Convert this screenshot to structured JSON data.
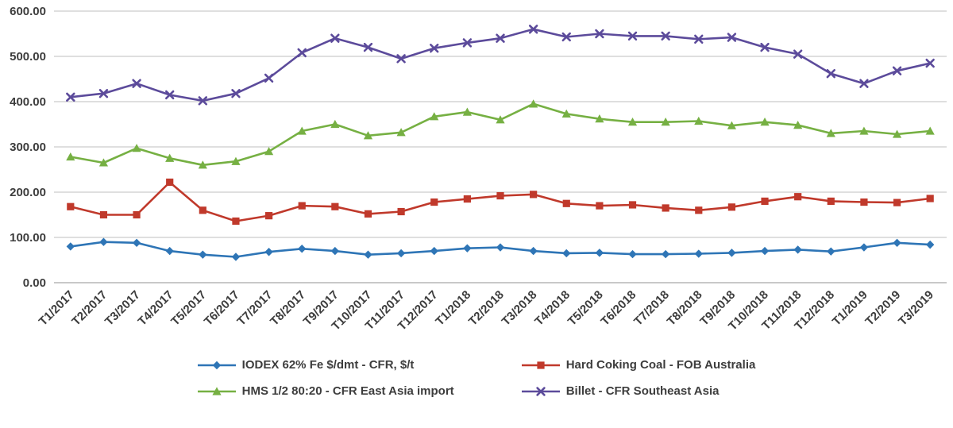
{
  "chart_data": {
    "type": "line",
    "title": "",
    "xlabel": "",
    "ylabel": "",
    "ylim": [
      0,
      600
    ],
    "grid": true,
    "legend_position": "bottom",
    "ytick_labels": [
      "0.00",
      "100.00",
      "200.00",
      "300.00",
      "400.00",
      "500.00",
      "600.00"
    ],
    "x": [
      "T1/2017",
      "T2/2017",
      "T3/2017",
      "T4/2017",
      "T5/2017",
      "T6/2017",
      "T7/2017",
      "T8/2017",
      "T9/2017",
      "T10/2017",
      "T11/2017",
      "T12/2017",
      "T1/2018",
      "T2/2018",
      "T3/2018",
      "T4/2018",
      "T5/2018",
      "T6/2018",
      "T7/2018",
      "T8/2018",
      "T9/2018",
      "T10/2018",
      "T11/2018",
      "T12/2018",
      "T1/2019",
      "T2/2019",
      "T3/2019"
    ],
    "series": [
      {
        "name": "IODEX 62% Fe $/dmt - CFR, $/t",
        "color": "#2e75b6",
        "marker": "diamond",
        "values": [
          80,
          90,
          88,
          70,
          62,
          57,
          68,
          75,
          70,
          62,
          65,
          70,
          76,
          78,
          70,
          65,
          66,
          63,
          63,
          64,
          66,
          70,
          73,
          69,
          78,
          88,
          84
        ]
      },
      {
        "name": "Hard Coking Coal - FOB Australia",
        "color": "#c0392b",
        "marker": "square",
        "values": [
          168,
          150,
          150,
          222,
          160,
          136,
          148,
          170,
          168,
          152,
          157,
          178,
          185,
          192,
          195,
          175,
          170,
          172,
          165,
          160,
          167,
          180,
          190,
          180,
          178,
          177,
          186
        ]
      },
      {
        "name": "HMS 1/2 80:20 - CFR East Asia import",
        "color": "#76b043",
        "marker": "triangle",
        "values": [
          278,
          265,
          297,
          275,
          260,
          268,
          290,
          335,
          350,
          325,
          332,
          367,
          377,
          360,
          395,
          373,
          362,
          355,
          355,
          357,
          347,
          355,
          348,
          330,
          335,
          328,
          335
        ]
      },
      {
        "name": "Billet - CFR Southeast Asia",
        "color": "#5c4b9b",
        "marker": "x",
        "values": [
          410,
          418,
          440,
          415,
          402,
          418,
          452,
          508,
          540,
          520,
          495,
          518,
          530,
          540,
          560,
          543,
          550,
          545,
          545,
          538,
          542,
          520,
          505,
          462,
          440,
          468,
          485
        ]
      }
    ]
  }
}
